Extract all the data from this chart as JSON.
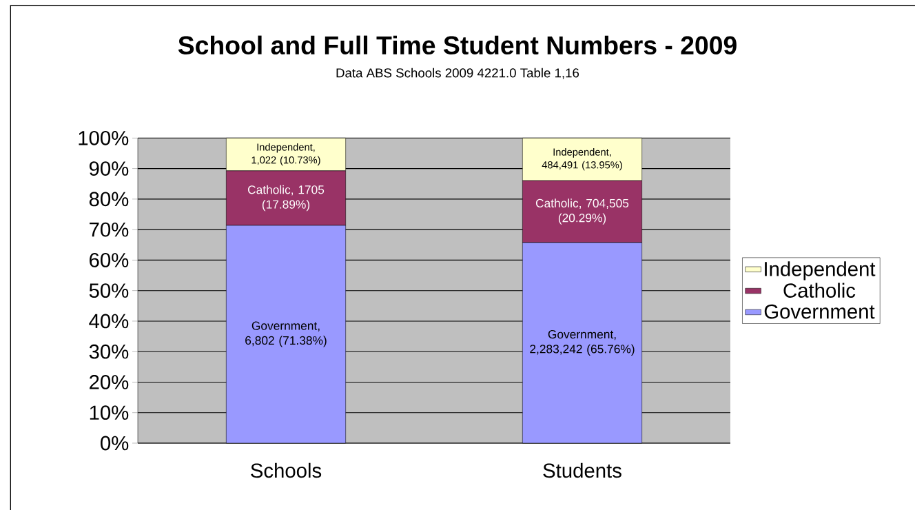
{
  "chart_data": {
    "type": "bar",
    "title": "School and Full Time Student Numbers - 2009",
    "subtitle": "Data ABS Schools 2009 4221.0 Table 1,16",
    "categories": [
      "Schools",
      "Students"
    ],
    "stacked": true,
    "series": [
      {
        "name": "Government",
        "color": "#9999ff",
        "values": [
          71.38,
          65.76
        ],
        "value_labels": [
          "Government, 6,802 (71.38%)",
          "Government, 2,283,242 (65.76%)"
        ]
      },
      {
        "name": "Catholic",
        "color": "#993366",
        "values": [
          17.89,
          20.29
        ],
        "value_labels": [
          "Catholic, 1705 (17.89%)",
          "Catholic, 704,505 (20.29%)"
        ]
      },
      {
        "name": "Independent",
        "color": "#ffffcc",
        "values": [
          10.73,
          13.95
        ],
        "value_labels": [
          "Independent, 1,022 (10.73%)",
          "Independent, 484,491 (13.95%)"
        ]
      }
    ],
    "ylim": [
      0,
      100
    ],
    "yticks": [
      {
        "value": 0,
        "label": "0%"
      },
      {
        "value": 10,
        "label": "10%"
      },
      {
        "value": 20,
        "label": "20%"
      },
      {
        "value": 30,
        "label": "30%"
      },
      {
        "value": 40,
        "label": "40%"
      },
      {
        "value": 50,
        "label": "50%"
      },
      {
        "value": 60,
        "label": "60%"
      },
      {
        "value": 70,
        "label": "70%"
      },
      {
        "value": 80,
        "label": "80%"
      },
      {
        "value": 90,
        "label": "90%"
      },
      {
        "value": 100,
        "label": "100%"
      }
    ],
    "grid": "y",
    "legend": "right"
  }
}
